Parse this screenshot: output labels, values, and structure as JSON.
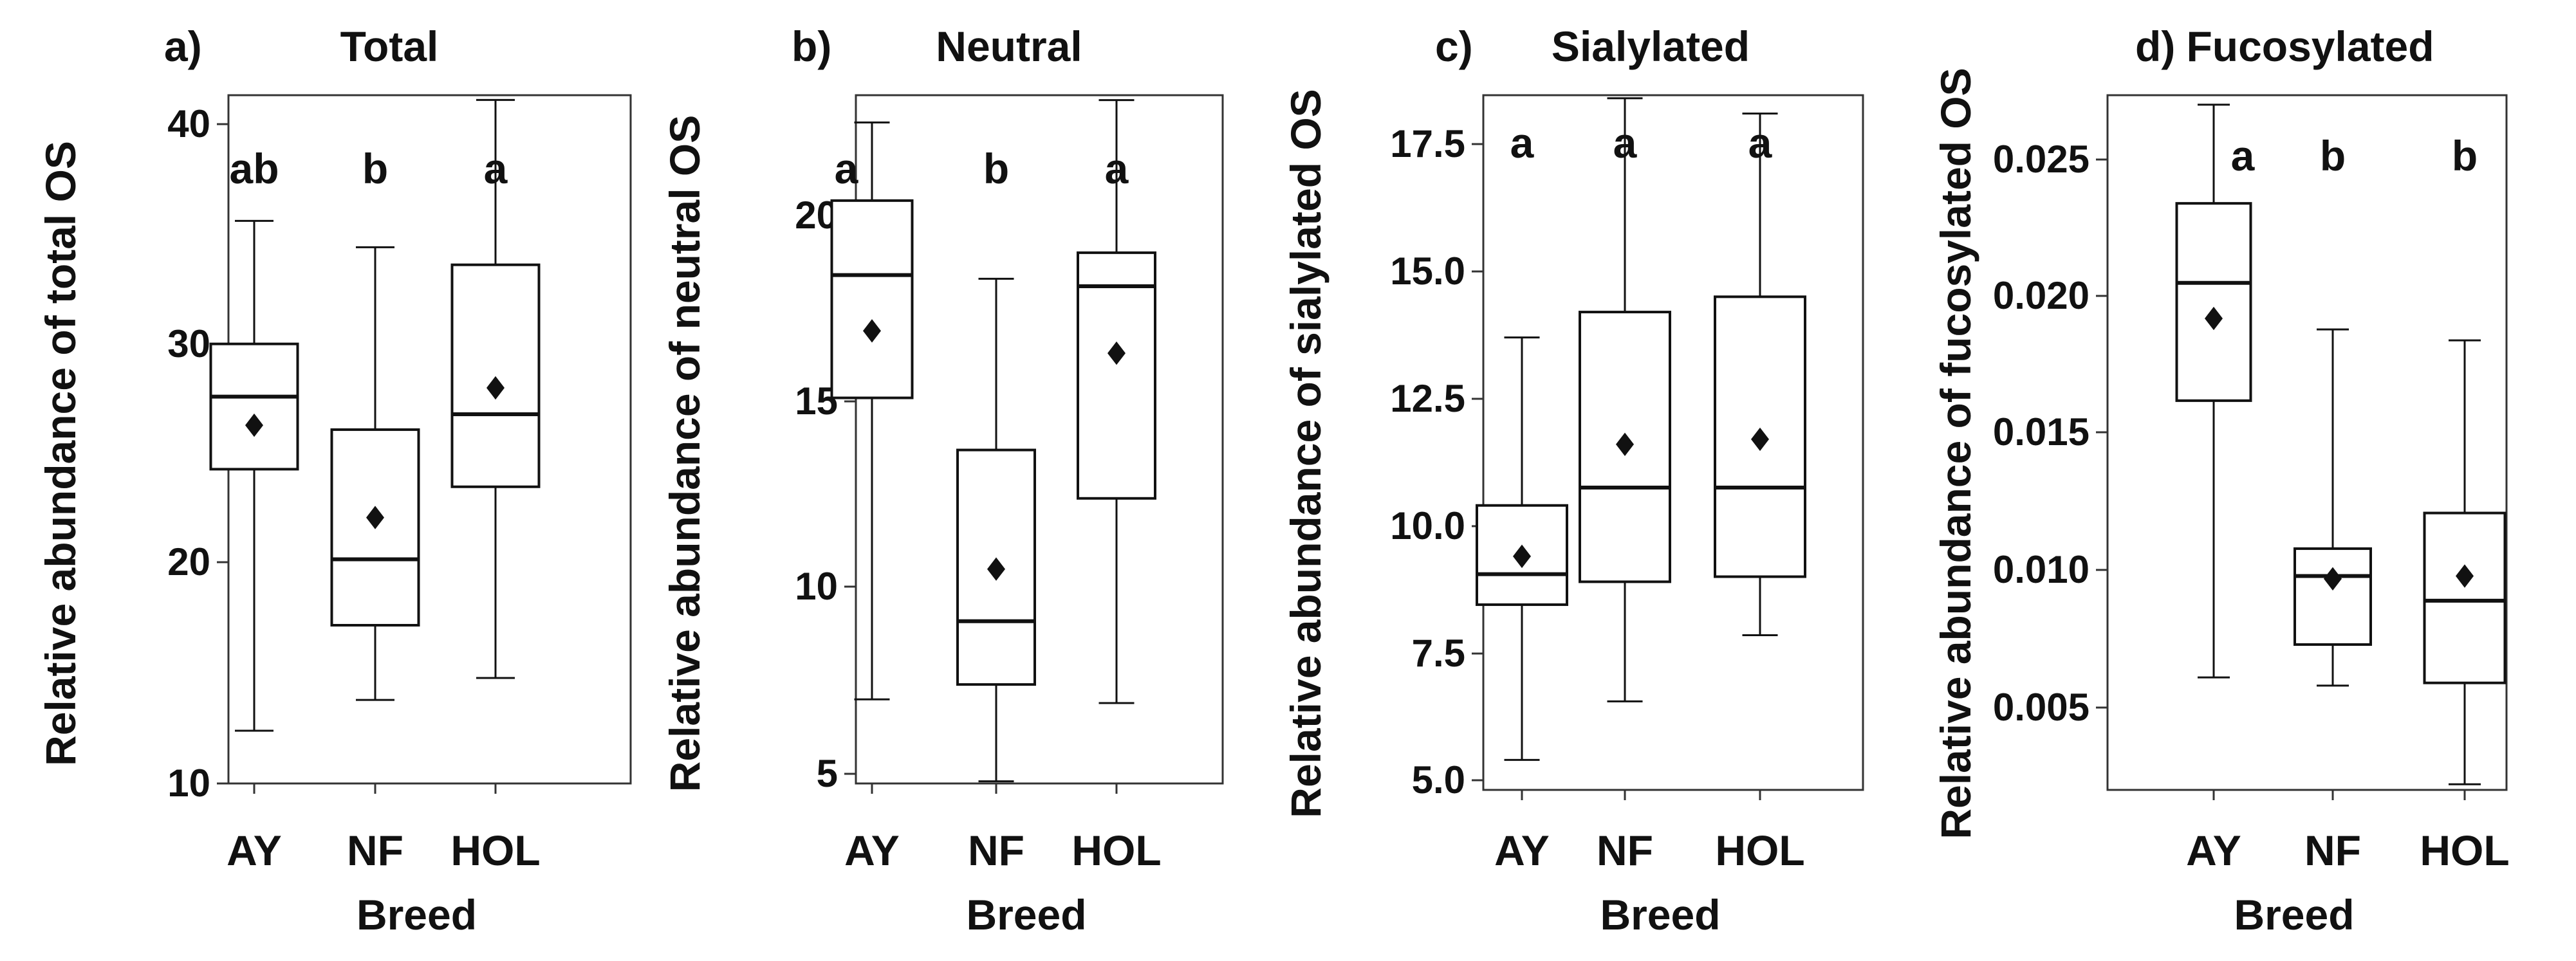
{
  "chart_data": [
    {
      "type": "box",
      "panel": "a)",
      "title": "Total",
      "xlabel": "Breed",
      "ylabel": "Relative abundance of total OS",
      "categories": [
        "AY",
        "NF",
        "HOL"
      ],
      "yticks": [
        "10",
        "20",
        "30",
        "40"
      ],
      "ylim": [
        10,
        42.5
      ],
      "letters": [
        "ab",
        "b",
        "a"
      ],
      "boxes": [
        {
          "min": 12.4,
          "q1": 24.3,
          "median": 27.6,
          "q3": 30.0,
          "max": 35.6,
          "mean": 26.3
        },
        {
          "min": 13.8,
          "q1": 17.2,
          "median": 20.2,
          "q3": 26.1,
          "max": 34.4,
          "mean": 22.1
        },
        {
          "min": 14.8,
          "q1": 23.5,
          "median": 26.8,
          "q3": 33.6,
          "max": 41.1,
          "mean": 28.0
        }
      ]
    },
    {
      "type": "box",
      "panel": "b)",
      "title": "Neutral",
      "xlabel": "Breed",
      "ylabel": "Relative abundance of neutral OS",
      "categories": [
        "AY",
        "NF",
        "HOL"
      ],
      "yticks": [
        "5",
        "10",
        "15",
        "20"
      ],
      "ylim": [
        4.4,
        23.7
      ],
      "letters": [
        "a",
        "b",
        "a"
      ],
      "boxes": [
        {
          "min": 7.0,
          "q1": 15.1,
          "median": 18.4,
          "q3": 20.4,
          "max": 22.5,
          "mean": 16.9
        },
        {
          "min": 4.8,
          "q1": 7.4,
          "median": 9.1,
          "q3": 13.7,
          "max": 18.3,
          "mean": 10.5
        },
        {
          "min": 6.9,
          "q1": 12.4,
          "median": 18.1,
          "q3": 19.0,
          "max": 23.1,
          "mean": 16.3
        }
      ]
    },
    {
      "type": "box",
      "panel": "c)",
      "title": "Sialylated",
      "xlabel": "Breed",
      "ylabel": "Relative abundance of sialylated OS",
      "categories": [
        "AY",
        "NF",
        "HOL"
      ],
      "yticks": [
        "5.0",
        "7.5",
        "10.0",
        "12.5",
        "15.0",
        "17.5"
      ],
      "ylim": [
        4.9,
        18.8
      ],
      "letters": [
        "a",
        "a",
        "a"
      ],
      "boxes": [
        {
          "min": 5.4,
          "q1": 8.45,
          "median": 9.05,
          "q3": 10.4,
          "max": 13.7,
          "mean": 9.4
        },
        {
          "min": 6.55,
          "q1": 8.9,
          "median": 10.75,
          "q3": 14.2,
          "max": 18.4,
          "mean": 11.6
        },
        {
          "min": 7.85,
          "q1": 9.0,
          "median": 10.75,
          "q3": 14.5,
          "max": 18.1,
          "mean": 11.7
        }
      ]
    },
    {
      "type": "box",
      "panel": "d)",
      "title": "Fucosylated",
      "xlabel": "Breed",
      "ylabel": "Relative abundance of fucosylated OS",
      "categories": [
        "AY",
        "NF",
        "HOL"
      ],
      "yticks": [
        "0.005",
        "0.010",
        "0.015",
        "0.020",
        "0.025"
      ],
      "ylim": [
        0.002,
        0.0275
      ],
      "letters": [
        "a",
        "b",
        "b"
      ],
      "boxes": [
        {
          "min": 0.0061,
          "q1": 0.0162,
          "median": 0.0205,
          "q3": 0.0234,
          "max": 0.027,
          "mean": 0.0192
        },
        {
          "min": 0.0058,
          "q1": 0.0073,
          "median": 0.0098,
          "q3": 0.0108,
          "max": 0.0188,
          "mean": 0.0097
        },
        {
          "min": 0.0022,
          "q1": 0.0059,
          "median": 0.0089,
          "q3": 0.0121,
          "max": 0.0184,
          "mean": 0.0098
        }
      ]
    }
  ]
}
